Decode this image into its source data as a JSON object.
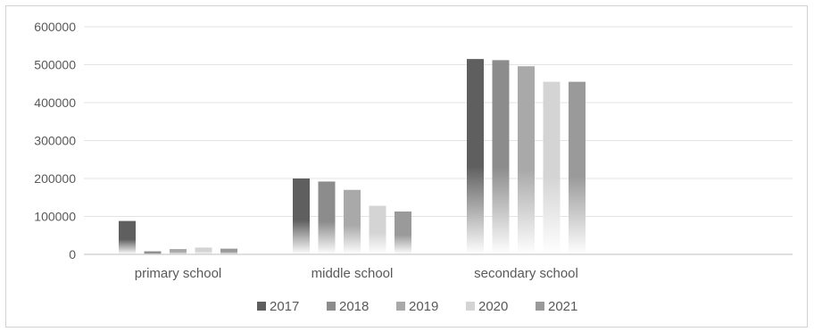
{
  "chart_data": {
    "type": "bar",
    "categories": [
      "primary school",
      "middle school",
      "secondary school"
    ],
    "series": [
      {
        "name": "2017",
        "values": [
          88000,
          200000,
          515000
        ],
        "color": "#5f5f5f"
      },
      {
        "name": "2018",
        "values": [
          8000,
          192000,
          512000
        ],
        "color": "#8c8c8c"
      },
      {
        "name": "2019",
        "values": [
          14000,
          170000,
          496000
        ],
        "color": "#a9a9a9"
      },
      {
        "name": "2020",
        "values": [
          18000,
          128000,
          455000
        ],
        "color": "#d4d4d4"
      },
      {
        "name": "2021",
        "values": [
          15000,
          113000,
          455000
        ],
        "color": "#9a9a9a"
      }
    ],
    "y_ticks": [
      "0",
      "100000",
      "200000",
      "300000",
      "400000",
      "500000",
      "600000"
    ],
    "ylim": [
      0,
      600000
    ],
    "grid": true,
    "legend": "bottom"
  }
}
